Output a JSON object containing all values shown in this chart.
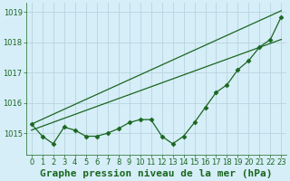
{
  "title": "Graphe pression niveau de la mer (hPa)",
  "background_color": "#d6eef8",
  "grid_color": "#b8d4de",
  "line_color": "#1a6620",
  "xlim": [
    -0.5,
    23.5
  ],
  "ylim": [
    1014.3,
    1019.3
  ],
  "yticks": [
    1015,
    1016,
    1017,
    1018,
    1019
  ],
  "xticks": [
    0,
    1,
    2,
    3,
    4,
    5,
    6,
    7,
    8,
    9,
    10,
    11,
    12,
    13,
    14,
    15,
    16,
    17,
    18,
    19,
    20,
    21,
    22,
    23
  ],
  "series_data_x": [
    0,
    1,
    2,
    3,
    4,
    5,
    6,
    7,
    8,
    9,
    10,
    11,
    12,
    13,
    14,
    15,
    16,
    17,
    18,
    19,
    20,
    21,
    22,
    23
  ],
  "series_data_y": [
    1015.3,
    1014.9,
    1014.65,
    1015.2,
    1015.1,
    1014.9,
    1014.9,
    1015.0,
    1015.15,
    1015.35,
    1015.45,
    1015.45,
    1014.9,
    1014.65,
    1014.9,
    1015.35,
    1015.85,
    1016.35,
    1016.6,
    1017.1,
    1017.4,
    1017.85,
    1018.1,
    1018.85
  ],
  "trend1_x": [
    0,
    23
  ],
  "trend1_y": [
    1015.3,
    1019.05
  ],
  "trend2_x": [
    0,
    23
  ],
  "trend2_y": [
    1015.1,
    1018.1
  ],
  "title_color": "#1a6620",
  "title_fontsize": 8.0,
  "tick_fontsize": 6.0,
  "tick_color": "#1a6620"
}
